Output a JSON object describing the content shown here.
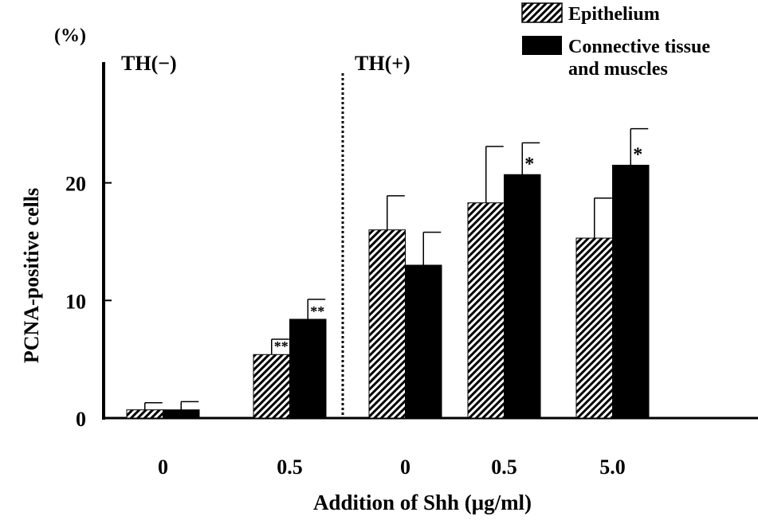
{
  "chart_data": {
    "type": "bar",
    "xlabel": "Addition of Shh (μg/ml)",
    "ylabel": "PCNA-positive cells",
    "yunit": "(%)",
    "ylim": [
      0,
      30
    ],
    "yticks": [
      "0",
      "10",
      "20"
    ],
    "grid": false,
    "legend_position": "top-right",
    "groups": [
      {
        "label": "TH(−)",
        "categories": [
          "0",
          "0.5"
        ]
      },
      {
        "label": "TH(+)",
        "categories": [
          "0",
          "0.5",
          "5.0"
        ]
      }
    ],
    "categories": [
      "0",
      "0.5",
      "0",
      "0.5",
      "5.0"
    ],
    "series": [
      {
        "name": "Epithelium",
        "fill": "hatched",
        "values": [
          0.7,
          5.4,
          16.0,
          18.3,
          15.3
        ],
        "error": [
          0.6,
          1.3,
          2.9,
          4.8,
          3.4
        ],
        "significance": [
          "",
          "**",
          "",
          "",
          ""
        ]
      },
      {
        "name": "Connective tissue and muscles",
        "fill": "#000000",
        "values": [
          0.7,
          8.4,
          13.0,
          20.7,
          21.5
        ],
        "error": [
          0.7,
          1.7,
          2.8,
          2.7,
          3.1
        ],
        "significance": [
          "",
          "**",
          "",
          "*",
          "*"
        ]
      }
    ]
  }
}
